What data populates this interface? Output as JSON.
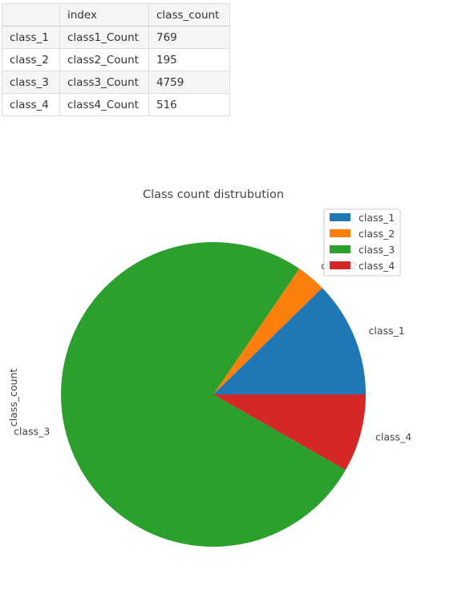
{
  "table": {
    "columns": [
      "",
      "index",
      "class_count"
    ],
    "rows": [
      [
        "class_1",
        "class1_Count",
        "769"
      ],
      [
        "class_2",
        "class2_Count",
        "195"
      ],
      [
        "class_3",
        "class3_Count",
        "4759"
      ],
      [
        "class_4",
        "class4_Count",
        "516"
      ]
    ]
  },
  "chart_data": {
    "type": "pie",
    "title": "Class count distrubution",
    "ylabel": "class_count",
    "labels": [
      "class_1",
      "class_2",
      "class_3",
      "class_4"
    ],
    "values": [
      769,
      195,
      4759,
      516
    ],
    "colors": [
      "#1f77b4",
      "#ff7f0e",
      "#2ca02c",
      "#d62728"
    ],
    "start_angle": 0,
    "direction": "counterclockwise",
    "legend": {
      "position": "top-right",
      "entries": [
        "class_1",
        "class_2",
        "class_3",
        "class_4"
      ]
    }
  }
}
